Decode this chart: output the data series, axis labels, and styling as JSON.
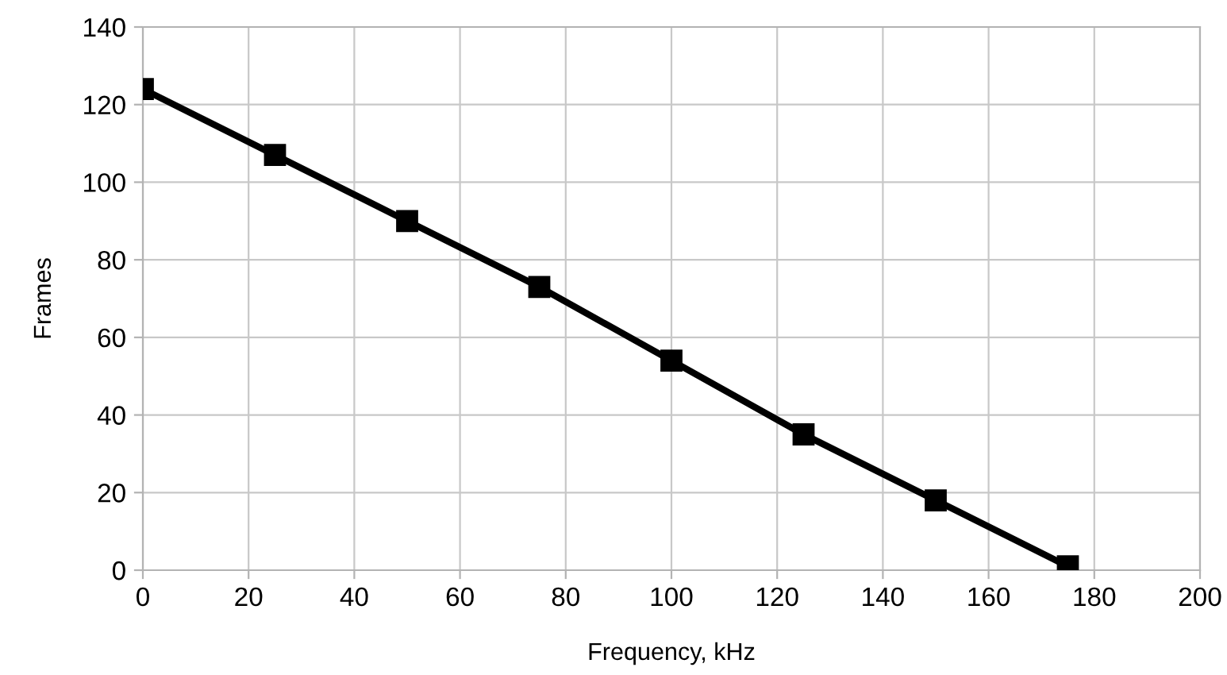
{
  "chart_data": {
    "type": "line",
    "xlabel": "Frequency, kHz",
    "ylabel": "Frames",
    "x": [
      0,
      25,
      50,
      75,
      100,
      125,
      150,
      175
    ],
    "series": [
      {
        "color": "#000000",
        "values": [
          124,
          107,
          90,
          73,
          54,
          35,
          18,
          1
        ]
      }
    ],
    "xlim": [
      0,
      200
    ],
    "xticks": [
      0,
      20,
      40,
      60,
      80,
      100,
      120,
      140,
      160,
      180,
      200
    ],
    "ylim": [
      0,
      140
    ],
    "yticks": [
      0,
      20,
      40,
      60,
      80,
      100,
      120,
      140
    ],
    "grid": true,
    "marker": "square",
    "line_style": "solid",
    "legend": false
  }
}
